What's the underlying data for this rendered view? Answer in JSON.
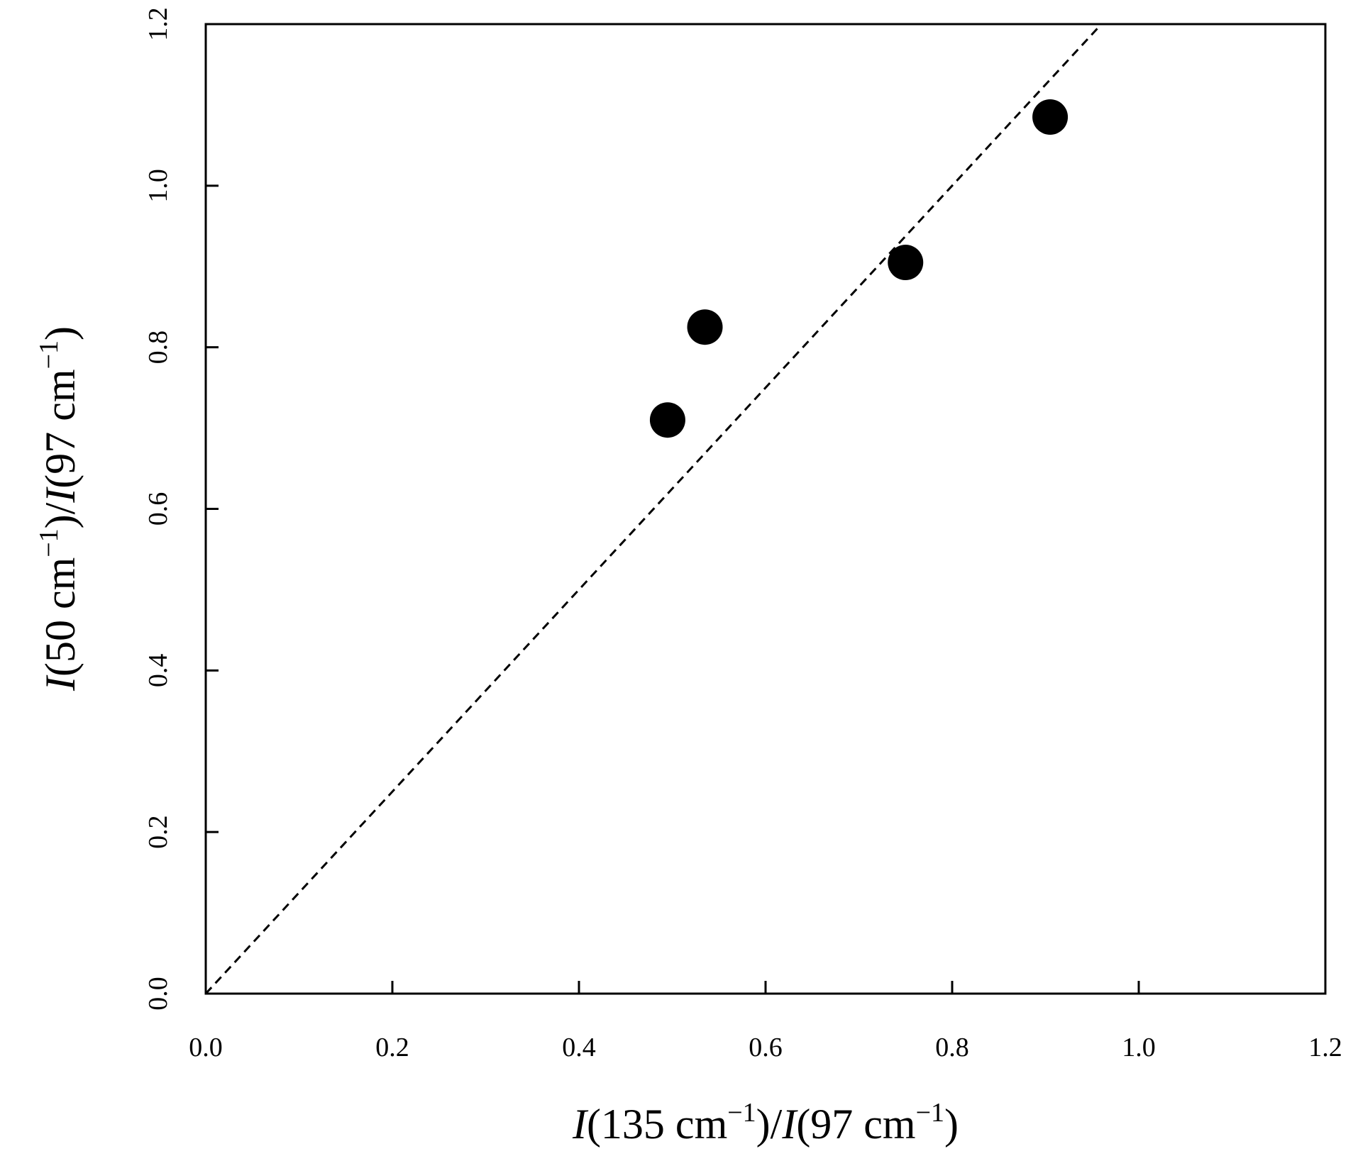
{
  "chart_data": {
    "type": "scatter",
    "title": "",
    "xlabel": {
      "parts": [
        {
          "text": "I",
          "style": "italic"
        },
        {
          "text": "(135 cm",
          "style": "normal"
        },
        {
          "text": "−1",
          "style": "sup"
        },
        {
          "text": ")/",
          "style": "normal"
        },
        {
          "text": "I",
          "style": "italic"
        },
        {
          "text": "(97 cm",
          "style": "normal"
        },
        {
          "text": "−1",
          "style": "sup"
        },
        {
          "text": ")",
          "style": "normal"
        }
      ]
    },
    "ylabel": {
      "parts": [
        {
          "text": "I",
          "style": "italic"
        },
        {
          "text": "(50 cm",
          "style": "normal"
        },
        {
          "text": "−1",
          "style": "sup"
        },
        {
          "text": ")/",
          "style": "normal"
        },
        {
          "text": "I",
          "style": "italic"
        },
        {
          "text": "(97 cm",
          "style": "normal"
        },
        {
          "text": "−1",
          "style": "sup"
        },
        {
          "text": ")",
          "style": "normal"
        }
      ]
    },
    "xlim": [
      0.0,
      1.2
    ],
    "ylim": [
      0.0,
      1.2
    ],
    "xticks": [
      "0.0",
      "0.2",
      "0.4",
      "0.6",
      "0.8",
      "1.0",
      "1.2"
    ],
    "yticks": [
      "0.0",
      "0.2",
      "0.4",
      "0.6",
      "0.8",
      "1.0",
      "1.2"
    ],
    "grid": false,
    "series": [
      {
        "marker": "filled-circle",
        "color": "#000000",
        "points": [
          {
            "x": 0.495,
            "y": 0.71
          },
          {
            "x": 0.535,
            "y": 0.825
          },
          {
            "x": 0.75,
            "y": 0.905
          },
          {
            "x": 0.905,
            "y": 1.085
          }
        ]
      }
    ],
    "reference_line": {
      "style": "dashed",
      "color": "#000000",
      "from": {
        "x": 0.0,
        "y": 0.0
      },
      "to": {
        "x": 0.96,
        "y": 1.2
      }
    }
  }
}
